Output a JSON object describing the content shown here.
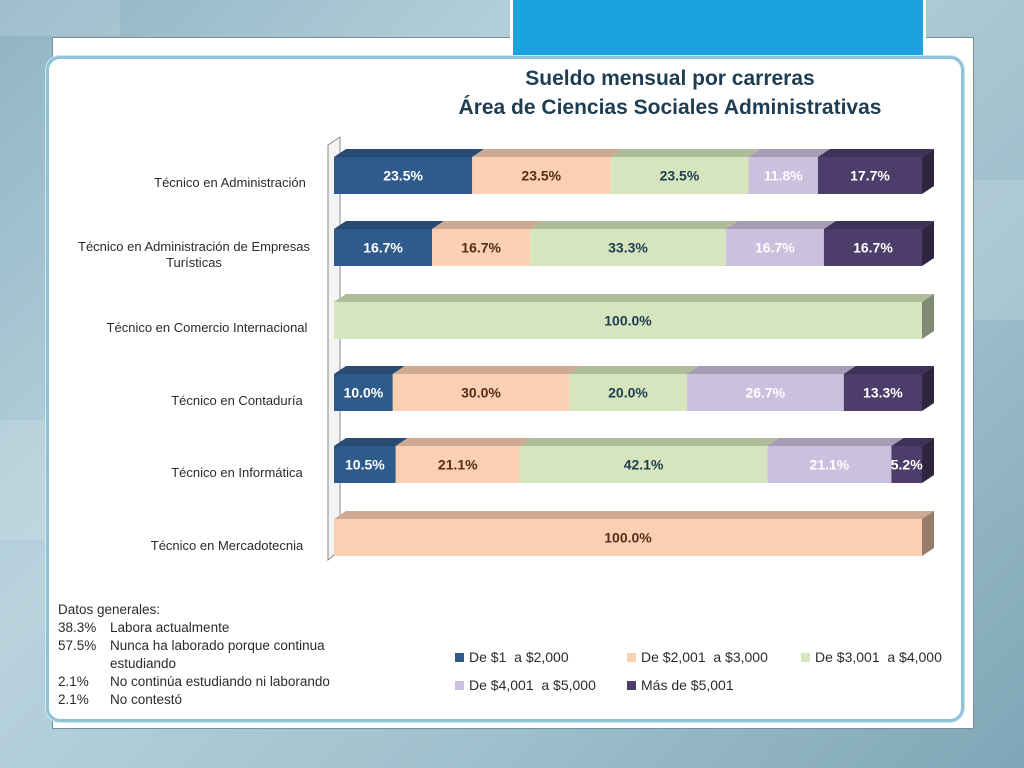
{
  "title_line1": "Sueldo mensual por carreras",
  "title_line2": "Área de Ciencias Sociales Administrativas",
  "notes": {
    "heading": "Datos generales:",
    "items": [
      {
        "pct": "38.3%",
        "text": "Labora actualmente"
      },
      {
        "pct": "57.5%",
        "text": "Nunca ha laborado porque continua estudiando"
      },
      {
        "pct": "2.1%",
        "text": "No continúa estudiando ni laborando"
      },
      {
        "pct": "2.1%",
        "text": "No contestó"
      }
    ]
  },
  "chart_data": {
    "type": "bar",
    "orientation": "horizontal",
    "stacked": "percent",
    "style": "3d",
    "categories": [
      "Técnico en Administración",
      "Técnico en Administración de Empresas Turísticas",
      "Técnico en Comercio Internacional",
      "Técnico en Contaduría",
      "Técnico en Informática",
      "Técnico en Mercadotecnia"
    ],
    "series": [
      {
        "name": "De $1  a $2,000",
        "color": "#2f5b8c",
        "label_color": "#ffffff",
        "values": [
          23.5,
          16.7,
          0,
          10.0,
          10.5,
          0
        ]
      },
      {
        "name": "De $2,001  a $3,000",
        "color": "#fbcfb2",
        "label_color": "#5a2a1a",
        "values": [
          23.5,
          16.7,
          0,
          30.0,
          21.1,
          100.0
        ]
      },
      {
        "name": "De $3,001  a $4,000",
        "color": "#d6e5bd",
        "label_color": "#1f3d52",
        "values": [
          23.5,
          33.3,
          100.0,
          20.0,
          42.1,
          0
        ]
      },
      {
        "name": "De $4,001  a $5,000",
        "color": "#cbc0dd",
        "label_color": "#ffffff",
        "values": [
          11.8,
          16.7,
          0,
          26.7,
          21.1,
          0
        ]
      },
      {
        "name": "Más de $5,001",
        "color": "#4d3d6b",
        "label_color": "#ffffff",
        "values": [
          17.7,
          16.7,
          0,
          13.3,
          5.2,
          0
        ]
      }
    ],
    "labels": [
      [
        "23.5%",
        "23.5%",
        "23.5%",
        "11.8%",
        "17.7%"
      ],
      [
        "16.7%",
        "16.7%",
        "33.3%",
        "16.7%",
        "16.7%"
      ],
      [
        "",
        "",
        "100.0%",
        "",
        ""
      ],
      [
        "10.0%",
        "30.0%",
        "20.0%",
        "26.7%",
        "13.3%"
      ],
      [
        "10.5%",
        "21.1%",
        "42.1%",
        "21.1%",
        "5.2%"
      ],
      [
        "",
        "100.0%",
        "",
        "",
        ""
      ]
    ],
    "xlim": [
      0,
      100
    ],
    "legend": "bottom-right"
  }
}
